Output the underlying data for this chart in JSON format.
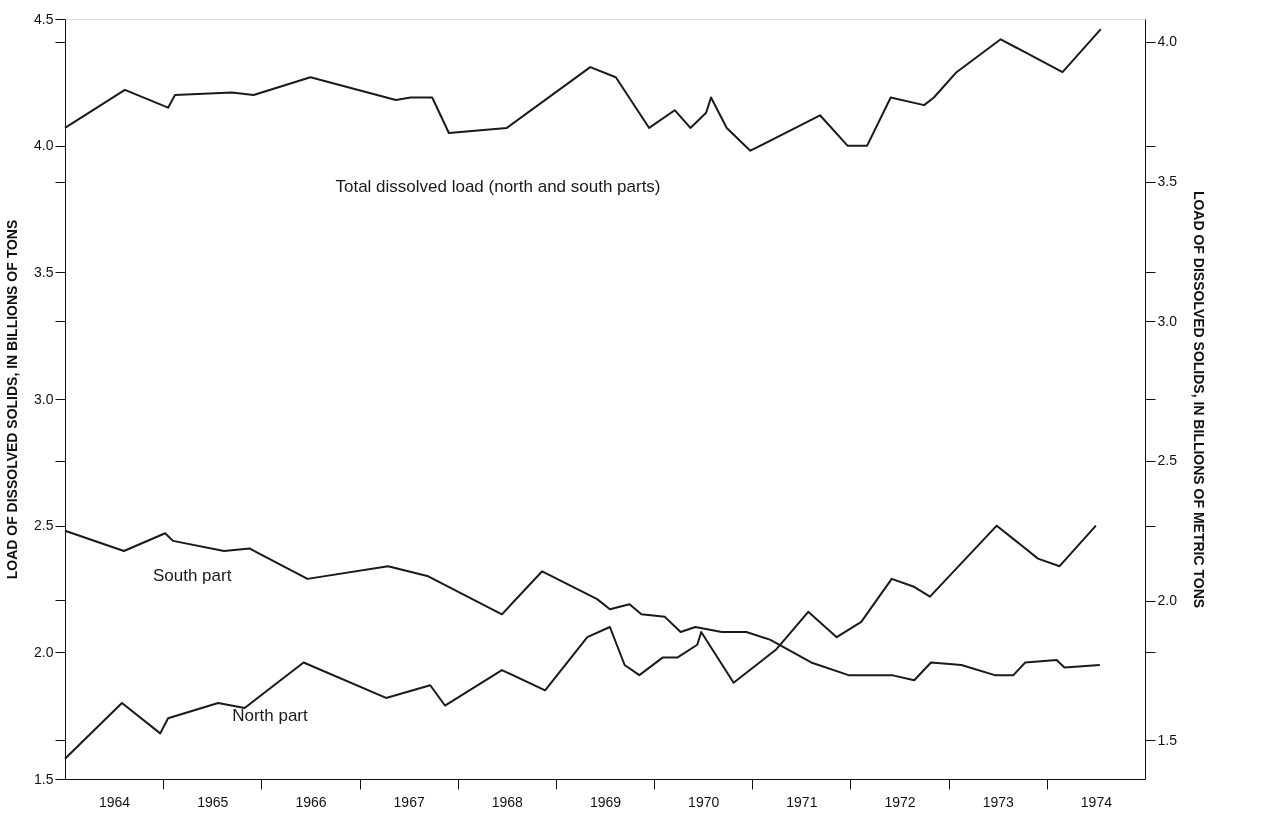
{
  "chart_data": {
    "type": "line",
    "ylabel": "LOAD OF DISSOLVED SOLIDS, IN BILLIONS OF TONS",
    "y2label": "LOAD OF DISSOLVED SOLIDS, IN BILLIONS OF METRIC TONS",
    "xlim": [
      1964,
      1975
    ],
    "xticks": [
      {
        "value": 1964.5,
        "label": "1964"
      },
      {
        "value": 1965,
        "label": null
      },
      {
        "value": 1965.5,
        "label": "1965"
      },
      {
        "value": 1966,
        "label": null
      },
      {
        "value": 1966.5,
        "label": "1966"
      },
      {
        "value": 1967,
        "label": null
      },
      {
        "value": 1967.5,
        "label": "1967"
      },
      {
        "value": 1968,
        "label": null
      },
      {
        "value": 1968.5,
        "label": "1968"
      },
      {
        "value": 1969,
        "label": null
      },
      {
        "value": 1969.5,
        "label": "1969"
      },
      {
        "value": 1970,
        "label": null
      },
      {
        "value": 1970.5,
        "label": "1970"
      },
      {
        "value": 1971,
        "label": null
      },
      {
        "value": 1971.5,
        "label": "1971"
      },
      {
        "value": 1972,
        "label": null
      },
      {
        "value": 1972.5,
        "label": "1972"
      },
      {
        "value": 1973,
        "label": null
      },
      {
        "value": 1973.5,
        "label": "1973"
      },
      {
        "value": 1974,
        "label": null
      },
      {
        "value": 1974.5,
        "label": "1974"
      }
    ],
    "ylim": [
      1.5,
      4.5
    ],
    "yticks": [
      {
        "value": 1.5,
        "label": "1.5"
      },
      {
        "value": 1.653,
        "label": null
      },
      {
        "value": 2.0,
        "label": "2.0"
      },
      {
        "value": 2.205,
        "label": null
      },
      {
        "value": 2.5,
        "label": "2.5"
      },
      {
        "value": 2.756,
        "label": null
      },
      {
        "value": 3.0,
        "label": "3.0"
      },
      {
        "value": 3.307,
        "label": null
      },
      {
        "value": 3.5,
        "label": "3.5"
      },
      {
        "value": 3.858,
        "label": null
      },
      {
        "value": 4.0,
        "label": "4.0"
      },
      {
        "value": 4.409,
        "label": null
      },
      {
        "value": 4.5,
        "label": "4.5"
      }
    ],
    "y2lim": [
      1.361,
      4.082
    ],
    "y2ticks": [
      {
        "value": 1.5,
        "label": "1.5"
      },
      {
        "value": 1.814,
        "label": null
      },
      {
        "value": 2.0,
        "label": "2.0"
      },
      {
        "value": 2.268,
        "label": null
      },
      {
        "value": 2.5,
        "label": "2.5"
      },
      {
        "value": 2.722,
        "label": null
      },
      {
        "value": 3.0,
        "label": "3.0"
      },
      {
        "value": 3.175,
        "label": null
      },
      {
        "value": 3.5,
        "label": "3.5"
      },
      {
        "value": 3.629,
        "label": null
      },
      {
        "value": 4.0,
        "label": "4.0"
      }
    ],
    "grid": false,
    "legend": false,
    "marker": "none",
    "line_style": "solid",
    "series": [
      {
        "name": "Total dissolved load (north and south parts)",
        "color": "#1a1a1a",
        "x": [
          1964.0,
          1964.61,
          1965.05,
          1965.12,
          1965.7,
          1965.92,
          1966.5,
          1967.37,
          1967.52,
          1967.74,
          1967.91,
          1968.5,
          1969.35,
          1969.61,
          1969.95,
          1970.21,
          1970.37,
          1970.53,
          1970.58,
          1970.74,
          1970.98,
          1971.69,
          1971.97,
          1972.17,
          1972.41,
          1972.75,
          1972.85,
          1973.08,
          1973.53,
          1974.16,
          1974.55
        ],
        "values": [
          4.07,
          4.22,
          4.15,
          4.2,
          4.21,
          4.2,
          4.27,
          4.18,
          4.19,
          4.19,
          4.05,
          4.07,
          4.31,
          4.27,
          4.07,
          4.14,
          4.07,
          4.13,
          4.19,
          4.07,
          3.98,
          4.12,
          4.0,
          4.0,
          4.19,
          4.16,
          4.19,
          4.29,
          4.42,
          4.29,
          4.46
        ]
      },
      {
        "name": "South part",
        "color": "#1a1a1a",
        "x": [
          1964.0,
          1964.6,
          1965.02,
          1965.1,
          1965.62,
          1965.88,
          1966.47,
          1967.29,
          1967.7,
          1968.45,
          1968.86,
          1969.42,
          1969.55,
          1969.75,
          1969.87,
          1970.11,
          1970.27,
          1970.42,
          1970.69,
          1970.94,
          1971.18,
          1971.6,
          1971.98,
          1972.42,
          1972.65,
          1972.82,
          1973.13,
          1973.47,
          1973.66,
          1973.78,
          1974.1,
          1974.18,
          1974.54
        ],
        "values": [
          2.48,
          2.4,
          2.47,
          2.44,
          2.4,
          2.41,
          2.29,
          2.34,
          2.3,
          2.15,
          2.32,
          2.21,
          2.17,
          2.19,
          2.15,
          2.14,
          2.08,
          2.1,
          2.08,
          2.08,
          2.05,
          1.96,
          1.91,
          1.91,
          1.89,
          1.96,
          1.95,
          1.91,
          1.91,
          1.96,
          1.97,
          1.94,
          1.95
        ]
      },
      {
        "name": "North part",
        "color": "#1a1a1a",
        "x": [
          1964.0,
          1964.58,
          1964.97,
          1965.05,
          1965.56,
          1965.83,
          1966.43,
          1967.27,
          1967.72,
          1967.87,
          1968.45,
          1968.89,
          1969.32,
          1969.55,
          1969.7,
          1969.85,
          1970.09,
          1970.24,
          1970.44,
          1970.48,
          1970.81,
          1971.24,
          1971.57,
          1971.86,
          1972.11,
          1972.42,
          1972.64,
          1972.81,
          1973.49,
          1973.91,
          1974.13,
          1974.5
        ],
        "values": [
          1.58,
          1.8,
          1.68,
          1.74,
          1.8,
          1.78,
          1.96,
          1.82,
          1.87,
          1.79,
          1.93,
          1.85,
          2.06,
          2.1,
          1.95,
          1.91,
          1.98,
          1.98,
          2.03,
          2.08,
          1.88,
          2.01,
          2.16,
          2.06,
          2.12,
          2.29,
          2.26,
          2.22,
          2.5,
          2.37,
          2.34,
          2.5
        ]
      }
    ]
  }
}
